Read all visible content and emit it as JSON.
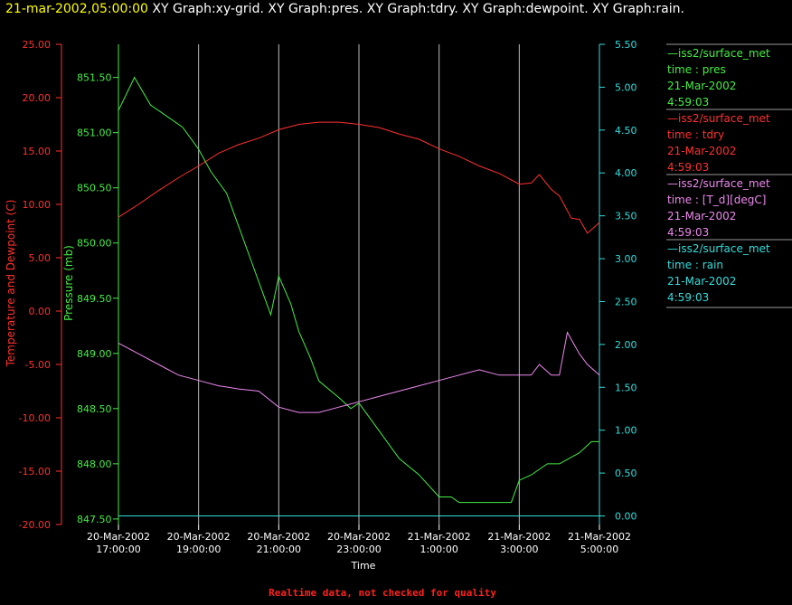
{
  "header": {
    "timestamp": "21-mar-2002,05:00:00",
    "graphs": "XY Graph:xy-grid.  XY Graph:pres.  XY Graph:tdry.  XY Graph:dewpoint.  XY Graph:rain."
  },
  "footer": {
    "note": "Realtime data, not checked for quality"
  },
  "colors": {
    "tdry": "#ff3030",
    "pres": "#44ee44",
    "dewpoint": "#ee88ee",
    "rain": "#33dddd",
    "grid": "#bbbbbb"
  },
  "legend": [
    {
      "line1": "—iss2/surface_met",
      "line2": "time : pres",
      "line3": "21-Mar-2002",
      "line4": "4:59:03",
      "color": "#44ee44"
    },
    {
      "line1": "—iss2/surface_met",
      "line2": "time : tdry",
      "line3": "21-Mar-2002",
      "line4": "4:59:03",
      "color": "#ff3030"
    },
    {
      "line1": "—iss2/surface_met",
      "line2": "time : [T_d][degC]",
      "line3": "21-Mar-2002",
      "line4": "4:59:03",
      "color": "#ee88ee"
    },
    {
      "line1": "—iss2/surface_met",
      "line2": "time : rain",
      "line3": "21-Mar-2002",
      "line4": "4:59:03",
      "color": "#33dddd"
    }
  ],
  "chart_data": {
    "type": "line",
    "xlabel": "Time",
    "x_ticks": [
      {
        "hour": 17,
        "l1": "20-Mar-2002",
        "l2": "17:00:00"
      },
      {
        "hour": 19,
        "l1": "20-Mar-2002",
        "l2": "19:00:00"
      },
      {
        "hour": 21,
        "l1": "20-Mar-2002",
        "l2": "21:00:00"
      },
      {
        "hour": 23,
        "l1": "20-Mar-2002",
        "l2": "23:00:00"
      },
      {
        "hour": 25,
        "l1": "21-Mar-2002",
        "l2": "1:00:00"
      },
      {
        "hour": 27,
        "l1": "21-Mar-2002",
        "l2": "3:00:00"
      },
      {
        "hour": 29,
        "l1": "21-Mar-2002",
        "l2": "5:00:00"
      }
    ],
    "xlim": [
      17,
      29
    ],
    "axes": {
      "temp": {
        "label": "Temperature and Dewpoint (C)",
        "lim": [
          -20,
          25
        ],
        "ticks": [
          "-20.00",
          "-15.00",
          "-10.00",
          "-5.00",
          "0.00",
          "5.00",
          "10.00",
          "15.00",
          "20.00",
          "25.00"
        ]
      },
      "pres": {
        "label": "Pressure (mb)",
        "lim": [
          847.45,
          851.8
        ],
        "ticks": [
          "847.50",
          "848.00",
          "848.50",
          "849.00",
          "849.50",
          "850.00",
          "850.50",
          "851.00",
          "851.50"
        ]
      },
      "rain": {
        "lim": [
          -0.1,
          5.5
        ],
        "ticks": [
          "0.00",
          "0.50",
          "1.00",
          "1.50",
          "2.00",
          "2.50",
          "3.00",
          "3.50",
          "4.00",
          "4.50",
          "5.00",
          "5.50"
        ]
      }
    },
    "series": [
      {
        "key": "tdry",
        "axis": "temp",
        "x": [
          17,
          17.5,
          18,
          18.5,
          19,
          19.5,
          20,
          20.5,
          21,
          21.5,
          22,
          22.5,
          23,
          23.5,
          24,
          24.5,
          25,
          25.5,
          26,
          26.5,
          27,
          27.3,
          27.5,
          27.8,
          28,
          28.3,
          28.5,
          28.7,
          29
        ],
        "y": [
          8.8,
          10,
          11.3,
          12.5,
          13.6,
          14.8,
          15.6,
          16.2,
          17,
          17.5,
          17.7,
          17.7,
          17.5,
          17.2,
          16.6,
          16.1,
          15.2,
          14.5,
          13.6,
          12.9,
          11.9,
          12,
          12.8,
          11.4,
          10.8,
          8.7,
          8.6,
          7.3,
          8.3
        ]
      },
      {
        "key": "pres",
        "axis": "pres",
        "x": [
          17,
          17.2,
          17.4,
          17.8,
          18.2,
          18.6,
          19,
          19.3,
          19.7,
          20,
          20.3,
          20.6,
          20.8,
          21,
          21.3,
          21.5,
          21.8,
          22,
          22.5,
          22.8,
          23,
          23.5,
          24,
          24.5,
          25,
          25.3,
          25.5,
          26,
          26.5,
          26.8,
          27,
          27.3,
          27.7,
          28,
          28.5,
          28.8,
          29
        ],
        "y": [
          851.2,
          851.35,
          851.5,
          851.25,
          851.15,
          851.05,
          850.85,
          850.65,
          850.45,
          850.15,
          849.85,
          849.55,
          849.35,
          849.7,
          849.45,
          849.2,
          848.95,
          848.75,
          848.6,
          848.5,
          848.55,
          848.3,
          848.05,
          847.9,
          847.7,
          847.7,
          847.65,
          847.65,
          847.65,
          847.65,
          847.85,
          847.9,
          848.0,
          848.0,
          848.1,
          848.2,
          848.2
        ]
      },
      {
        "key": "dewpoint",
        "axis": "temp",
        "x": [
          17,
          17.5,
          18,
          18.5,
          19,
          19.5,
          20,
          20.5,
          21,
          21.5,
          22,
          22.5,
          23,
          23.5,
          24,
          24.5,
          25,
          25.5,
          26,
          26.5,
          27,
          27.3,
          27.5,
          27.8,
          28,
          28.2,
          28.5,
          28.7,
          29
        ],
        "y": [
          -3,
          -4,
          -5,
          -6,
          -6.5,
          -7,
          -7.3,
          -7.5,
          -9,
          -9.5,
          -9.5,
          -9,
          -8.5,
          -8,
          -7.5,
          -7,
          -6.5,
          -6,
          -5.5,
          -6,
          -6,
          -6,
          -5,
          -6,
          -6,
          -2,
          -4,
          -5,
          -6
        ]
      },
      {
        "key": "rain",
        "axis": "rain",
        "x": [
          17,
          29
        ],
        "y": [
          0,
          0
        ]
      }
    ]
  }
}
